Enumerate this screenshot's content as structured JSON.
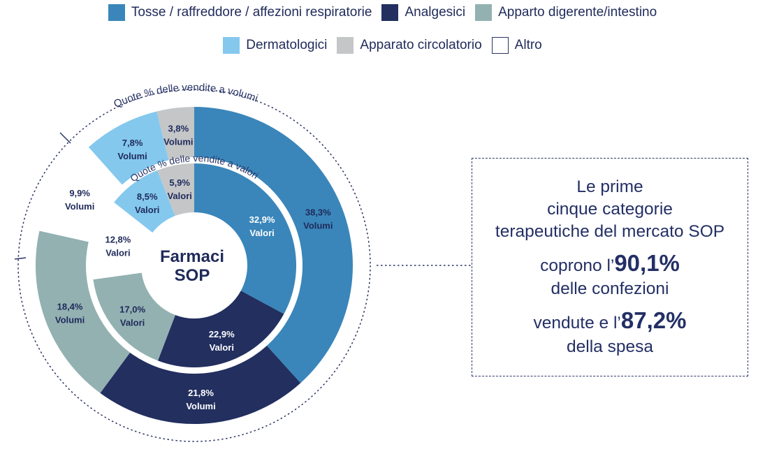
{
  "legend": {
    "items": [
      {
        "label": "Tosse / raffreddore / affezioni respiratorie",
        "color": "#3a86ba",
        "border": "#3a86ba"
      },
      {
        "label": "Analgesici",
        "color": "#222f5f",
        "border": "#222f5f"
      },
      {
        "label": "Apparto digerente/intestino",
        "color": "#93b1b1",
        "border": "#93b1b1"
      },
      {
        "label": "Dermatologici",
        "color": "#84c8ee",
        "border": "#84c8ee"
      },
      {
        "label": "Apparato circolatorio",
        "color": "#c4c6c8",
        "border": "#c4c6c8"
      },
      {
        "label": "Altro",
        "color": "#ffffff",
        "border": "#2a3566"
      }
    ]
  },
  "chart_data": {
    "type": "pie",
    "variant": "nested-donut",
    "center_label": [
      "Farmaci",
      "SOP"
    ],
    "categories": [
      "Tosse / raffreddore / affezioni respiratorie",
      "Analgesici",
      "Apparto digerente/intestino",
      "Altro",
      "Dermatologici",
      "Apparato circolatorio"
    ],
    "colors": [
      "#3a86ba",
      "#222f5f",
      "#93b1b1",
      "#ffffff",
      "#84c8ee",
      "#c4c6c8"
    ],
    "series": [
      {
        "name": "Quote % delle vendite a volumi",
        "ring": "outer",
        "values": [
          38.3,
          21.8,
          18.4,
          9.9,
          7.8,
          3.8
        ],
        "labels": [
          [
            "38,3%",
            "Volumi"
          ],
          [
            "21,8%",
            "Volumi"
          ],
          [
            "18,4%",
            "Volumi"
          ],
          [
            "9,9%",
            "Volumi"
          ],
          [
            "7,8%",
            "Volumi"
          ],
          [
            "3,8%",
            "Volumi"
          ]
        ]
      },
      {
        "name": "Quote % delle vendite a valori",
        "ring": "inner",
        "values": [
          32.9,
          22.9,
          17.0,
          12.8,
          8.5,
          5.9
        ],
        "labels": [
          [
            "32,9%",
            "Valori"
          ],
          [
            "22,9%",
            "Valori"
          ],
          [
            "17,0%",
            "Valori"
          ],
          [
            "12,8%",
            "Valori"
          ],
          [
            "8,5%",
            "Valori"
          ],
          [
            "5,9%",
            "Valori"
          ]
        ]
      }
    ]
  },
  "callout": {
    "text_lines": [
      "Le prime",
      "cinque categorie",
      "terapeutiche del mercato SOP"
    ],
    "line4_prefix": "coprono l’",
    "line4_value": "90,1%",
    "line5": "delle confezioni",
    "line6_prefix": "vendute e l’",
    "line6_value": "87,2%",
    "line7": "della spesa"
  }
}
